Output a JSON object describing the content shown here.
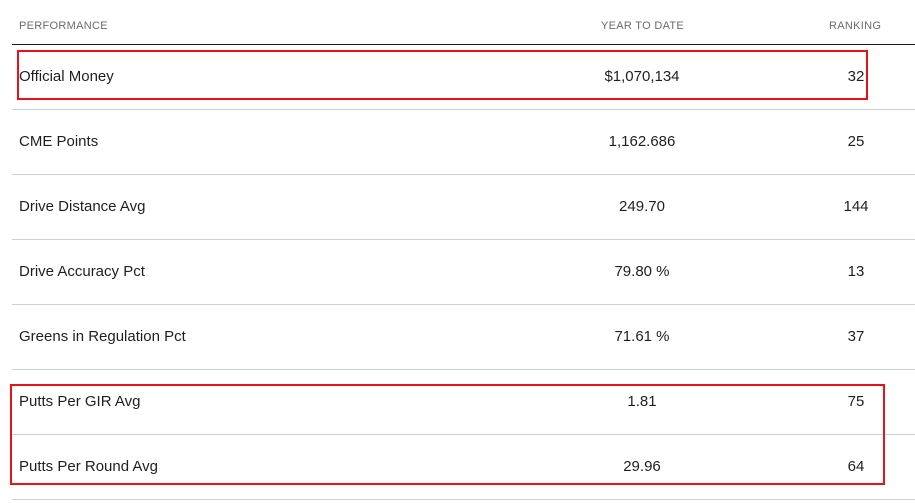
{
  "table": {
    "headers": {
      "performance": "PERFORMANCE",
      "year_to_date": "YEAR TO DATE",
      "ranking": "RANKING"
    },
    "rows": [
      {
        "label": "Official Money",
        "value": "$1,070,134",
        "rank": "32"
      },
      {
        "label": "CME Points",
        "value": "1,162.686",
        "rank": "25"
      },
      {
        "label": "Drive Distance Avg",
        "value": "249.70",
        "rank": "144"
      },
      {
        "label": "Drive Accuracy Pct",
        "value": "79.80 %",
        "rank": "13"
      },
      {
        "label": "Greens in Regulation Pct",
        "value": "71.61 %",
        "rank": "37"
      },
      {
        "label": "Putts Per GIR Avg",
        "value": "1.81",
        "rank": "75"
      },
      {
        "label": "Putts Per Round Avg",
        "value": "29.96",
        "rank": "64"
      }
    ]
  },
  "colors": {
    "highlight_border": "#e8131a",
    "row_divider": "#c6d3df",
    "header_divider": "#1a1a1a",
    "header_text": "#6b6b6b"
  }
}
